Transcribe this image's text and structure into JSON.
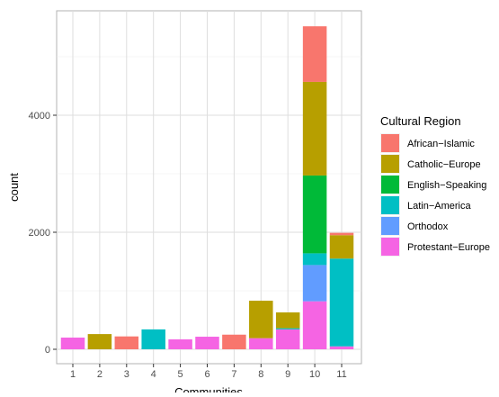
{
  "chart_data": {
    "type": "bar",
    "stacked": true,
    "title": "",
    "xlabel": "Communities",
    "ylabel": "count",
    "categories": [
      "1",
      "2",
      "3",
      "4",
      "5",
      "6",
      "7",
      "8",
      "9",
      "10",
      "11"
    ],
    "ylim": [
      -250,
      5800
    ],
    "yticks": [
      0,
      2000,
      4000
    ],
    "grid": true,
    "legend": {
      "title": "Cultural Region",
      "placement": "right"
    },
    "series": [
      {
        "name": "African−Islamic",
        "color": "#F8766D",
        "values": [
          0,
          0,
          220,
          0,
          0,
          0,
          250,
          0,
          0,
          950,
          40
        ]
      },
      {
        "name": "Catholic−Europe",
        "color": "#B79F00",
        "values": [
          0,
          260,
          0,
          0,
          0,
          0,
          0,
          640,
          270,
          1600,
          400
        ]
      },
      {
        "name": "English−Speaking",
        "color": "#00BA38",
        "values": [
          0,
          0,
          0,
          0,
          0,
          0,
          0,
          0,
          0,
          1330,
          0
        ]
      },
      {
        "name": "Latin−America",
        "color": "#00BFC4",
        "values": [
          0,
          0,
          0,
          340,
          0,
          0,
          0,
          0,
          20,
          200,
          1500
        ]
      },
      {
        "name": "Orthodox",
        "color": "#619CFF",
        "values": [
          0,
          0,
          0,
          0,
          0,
          0,
          0,
          0,
          0,
          620,
          0
        ]
      },
      {
        "name": "Protestant−Europe",
        "color": "#F564E3",
        "values": [
          200,
          0,
          0,
          0,
          170,
          215,
          0,
          190,
          340,
          820,
          50
        ]
      }
    ]
  }
}
